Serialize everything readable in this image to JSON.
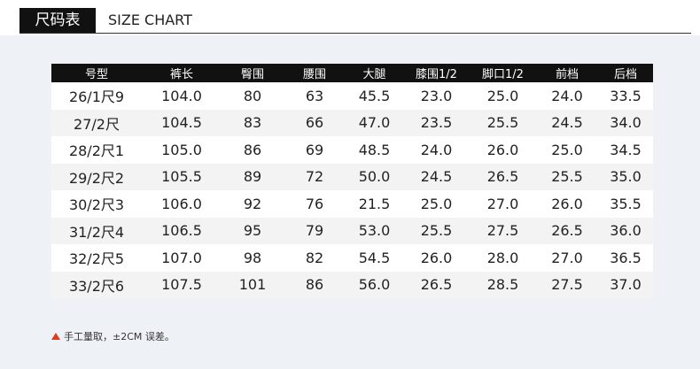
{
  "header": {
    "title": "尺码表",
    "subtitle": "SIZE CHART"
  },
  "table": {
    "header": [
      "号型",
      "裤长",
      "臀围",
      "腰围",
      "大腿",
      "膝围1/2",
      "脚口1/2",
      "前档",
      "后档"
    ],
    "rows": [
      [
        "26/1尺9",
        "104.0",
        "80",
        "63",
        "45.5",
        "23.0",
        "25.0",
        "24.0",
        "33.5"
      ],
      [
        "27/2尺",
        "104.5",
        "83",
        "66",
        "47.0",
        "23.5",
        "25.5",
        "24.5",
        "34.0"
      ],
      [
        "28/2尺1",
        "105.0",
        "86",
        "69",
        "48.5",
        "24.0",
        "26.0",
        "25.0",
        "34.5"
      ],
      [
        "29/2尺2",
        "105.5",
        "89",
        "72",
        "50.0",
        "24.5",
        "26.5",
        "25.5",
        "35.0"
      ],
      [
        "30/2尺3",
        "106.0",
        "92",
        "76",
        "21.5",
        "25.0",
        "27.0",
        "26.0",
        "35.5"
      ],
      [
        "31/2尺4",
        "106.5",
        "95",
        "79",
        "53.0",
        "25.5",
        "27.5",
        "26.5",
        "36.0"
      ],
      [
        "32/2尺5",
        "107.0",
        "98",
        "82",
        "54.5",
        "26.0",
        "28.0",
        "27.0",
        "36.5"
      ],
      [
        "33/2尺6",
        "107.5",
        "101",
        "86",
        "56.0",
        "26.5",
        "28.5",
        "27.5",
        "37.0"
      ]
    ]
  },
  "note": "手工量取，±2CM 误差。"
}
